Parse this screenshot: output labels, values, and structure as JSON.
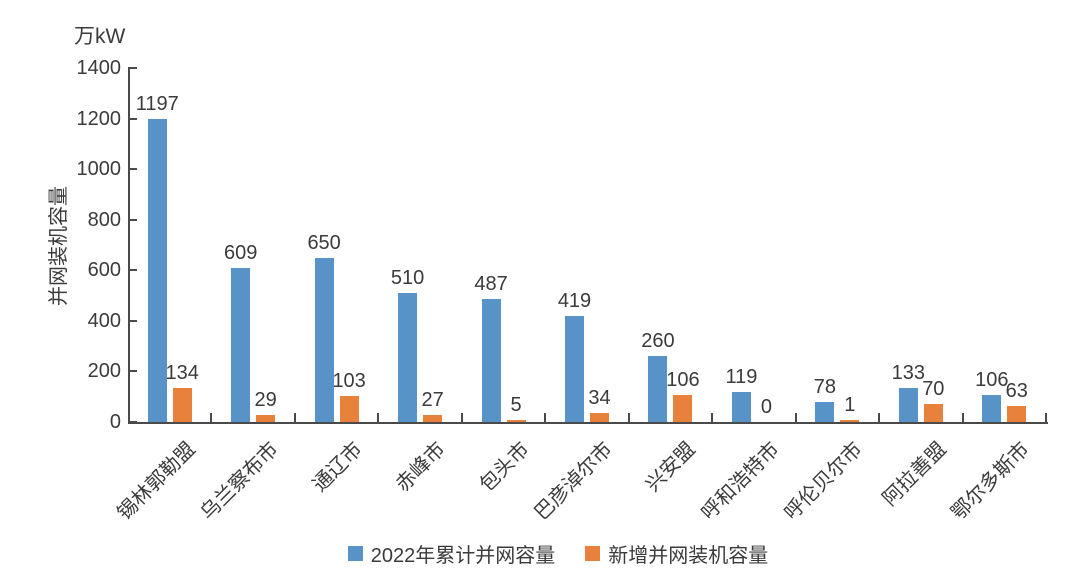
{
  "chart_data": {
    "type": "bar",
    "title": "",
    "unit": "万kW",
    "xlabel": "",
    "ylabel": "并网装机容量",
    "ylim": [
      0,
      1400
    ],
    "ytick_interval": 200,
    "yticks": [
      1400,
      1200,
      1000,
      800,
      600,
      400,
      200,
      0
    ],
    "grid": false,
    "legend_position": "bottom-center",
    "categories": [
      "锡林郭勒盟",
      "乌兰察布市",
      "通辽市",
      "赤峰市",
      "包头市",
      "巴彦淖尔市",
      "兴安盟",
      "呼和浩特市",
      "呼伦贝尔市",
      "阿拉善盟",
      "鄂尔多斯市"
    ],
    "series": [
      {
        "name": "2022年累计并网容量",
        "color": "#5793C7",
        "values": [
          1197,
          609,
          650,
          510,
          487,
          419,
          260,
          119,
          78,
          133,
          106
        ]
      },
      {
        "name": "新增并网装机容量",
        "color": "#E8813C",
        "values": [
          134,
          29,
          103,
          27,
          5,
          34,
          106,
          0,
          1,
          70,
          63
        ]
      }
    ],
    "bar_value_labels_shown": true,
    "axis_color": "#4a4a4a",
    "text_color": "#3b3b3b"
  }
}
